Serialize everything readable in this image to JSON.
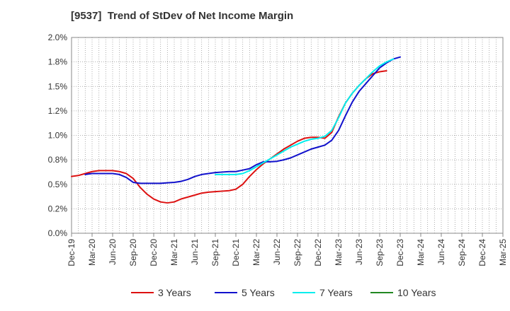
{
  "title": "[9537]  Trend of StDev of Net Income Margin",
  "chart_data": {
    "type": "line",
    "title": "[9537]  Trend of StDev of Net Income Margin",
    "y_ticks": [
      "0.0%",
      "0.2%",
      "0.5%",
      "0.8%",
      "1.0%",
      "1.2%",
      "1.5%",
      "1.8%",
      "2.0%"
    ],
    "ylim": [
      0,
      2.0
    ],
    "x_ticks": [
      "Dec-19",
      "Mar-20",
      "Jun-20",
      "Sep-20",
      "Dec-20",
      "Mar-21",
      "Jun-21",
      "Sep-21",
      "Dec-21",
      "Mar-22",
      "Jun-22",
      "Sep-22",
      "Dec-22",
      "Mar-23",
      "Jun-23",
      "Sep-23",
      "Dec-23",
      "Mar-24",
      "Jun-24",
      "Sep-24",
      "Dec-24",
      "Mar-25"
    ],
    "grid": true,
    "legend_position": "bottom",
    "series": [
      {
        "name": "3 Years",
        "color": "#dd1111",
        "points": [
          [
            0,
            0.58
          ],
          [
            1,
            0.59
          ],
          [
            2,
            0.61
          ],
          [
            3,
            0.63
          ],
          [
            4,
            0.64
          ],
          [
            5,
            0.64
          ],
          [
            6,
            0.64
          ],
          [
            7,
            0.63
          ],
          [
            8,
            0.61
          ],
          [
            9,
            0.56
          ],
          [
            10,
            0.47
          ],
          [
            11,
            0.4
          ],
          [
            12,
            0.35
          ],
          [
            13,
            0.32
          ],
          [
            14,
            0.31
          ],
          [
            15,
            0.32
          ],
          [
            16,
            0.35
          ],
          [
            17,
            0.37
          ],
          [
            18,
            0.39
          ],
          [
            19,
            0.41
          ],
          [
            20,
            0.42
          ],
          [
            21,
            0.425
          ],
          [
            22,
            0.43
          ],
          [
            23,
            0.435
          ],
          [
            24,
            0.45
          ],
          [
            25,
            0.5
          ],
          [
            26,
            0.58
          ],
          [
            27,
            0.65
          ],
          [
            28,
            0.71
          ],
          [
            29,
            0.76
          ],
          [
            30,
            0.81
          ],
          [
            31,
            0.86
          ],
          [
            32,
            0.9
          ],
          [
            33,
            0.94
          ],
          [
            34,
            0.97
          ],
          [
            35,
            0.98
          ],
          [
            36,
            0.98
          ],
          [
            37,
            0.97
          ],
          [
            38,
            1.03
          ],
          [
            39,
            1.19
          ],
          [
            40,
            1.33
          ],
          [
            41,
            1.43
          ],
          [
            42,
            1.51
          ],
          [
            43,
            1.58
          ],
          [
            44,
            1.63
          ],
          [
            45,
            1.65
          ],
          [
            46,
            1.66
          ]
        ]
      },
      {
        "name": "5 Years",
        "color": "#1111cc",
        "points": [
          [
            2,
            0.6
          ],
          [
            3,
            0.61
          ],
          [
            4,
            0.61
          ],
          [
            5,
            0.61
          ],
          [
            6,
            0.61
          ],
          [
            7,
            0.6
          ],
          [
            8,
            0.57
          ],
          [
            9,
            0.52
          ],
          [
            10,
            0.51
          ],
          [
            11,
            0.51
          ],
          [
            12,
            0.51
          ],
          [
            13,
            0.51
          ],
          [
            14,
            0.515
          ],
          [
            15,
            0.52
          ],
          [
            16,
            0.53
          ],
          [
            17,
            0.55
          ],
          [
            18,
            0.58
          ],
          [
            19,
            0.6
          ],
          [
            20,
            0.61
          ],
          [
            21,
            0.62
          ],
          [
            22,
            0.625
          ],
          [
            23,
            0.63
          ],
          [
            24,
            0.63
          ],
          [
            25,
            0.645
          ],
          [
            26,
            0.66
          ],
          [
            27,
            0.7
          ],
          [
            28,
            0.73
          ],
          [
            29,
            0.73
          ],
          [
            30,
            0.735
          ],
          [
            31,
            0.75
          ],
          [
            32,
            0.77
          ],
          [
            33,
            0.8
          ],
          [
            34,
            0.83
          ],
          [
            35,
            0.86
          ],
          [
            36,
            0.88
          ],
          [
            37,
            0.9
          ],
          [
            38,
            0.95
          ],
          [
            39,
            1.05
          ],
          [
            40,
            1.2
          ],
          [
            41,
            1.34
          ],
          [
            42,
            1.45
          ],
          [
            43,
            1.53
          ],
          [
            44,
            1.61
          ],
          [
            45,
            1.69
          ],
          [
            46,
            1.74
          ],
          [
            47,
            1.78
          ],
          [
            48,
            1.8
          ]
        ]
      },
      {
        "name": "7 Years",
        "color": "#00eeee",
        "points": [
          [
            21,
            0.6
          ],
          [
            22,
            0.6
          ],
          [
            23,
            0.6
          ],
          [
            24,
            0.6
          ],
          [
            25,
            0.61
          ],
          [
            26,
            0.64
          ],
          [
            27,
            0.68
          ],
          [
            28,
            0.72
          ],
          [
            29,
            0.76
          ],
          [
            30,
            0.8
          ],
          [
            31,
            0.84
          ],
          [
            32,
            0.88
          ],
          [
            33,
            0.91
          ],
          [
            34,
            0.94
          ],
          [
            35,
            0.96
          ],
          [
            36,
            0.97
          ],
          [
            37,
            0.99
          ],
          [
            38,
            1.05
          ],
          [
            39,
            1.18
          ],
          [
            40,
            1.33
          ],
          [
            41,
            1.43
          ],
          [
            42,
            1.51
          ],
          [
            43,
            1.58
          ],
          [
            44,
            1.65
          ],
          [
            45,
            1.71
          ],
          [
            46,
            1.75
          ],
          [
            47,
            1.78
          ]
        ]
      },
      {
        "name": "10 Years",
        "color": "#228822",
        "points": []
      }
    ]
  }
}
